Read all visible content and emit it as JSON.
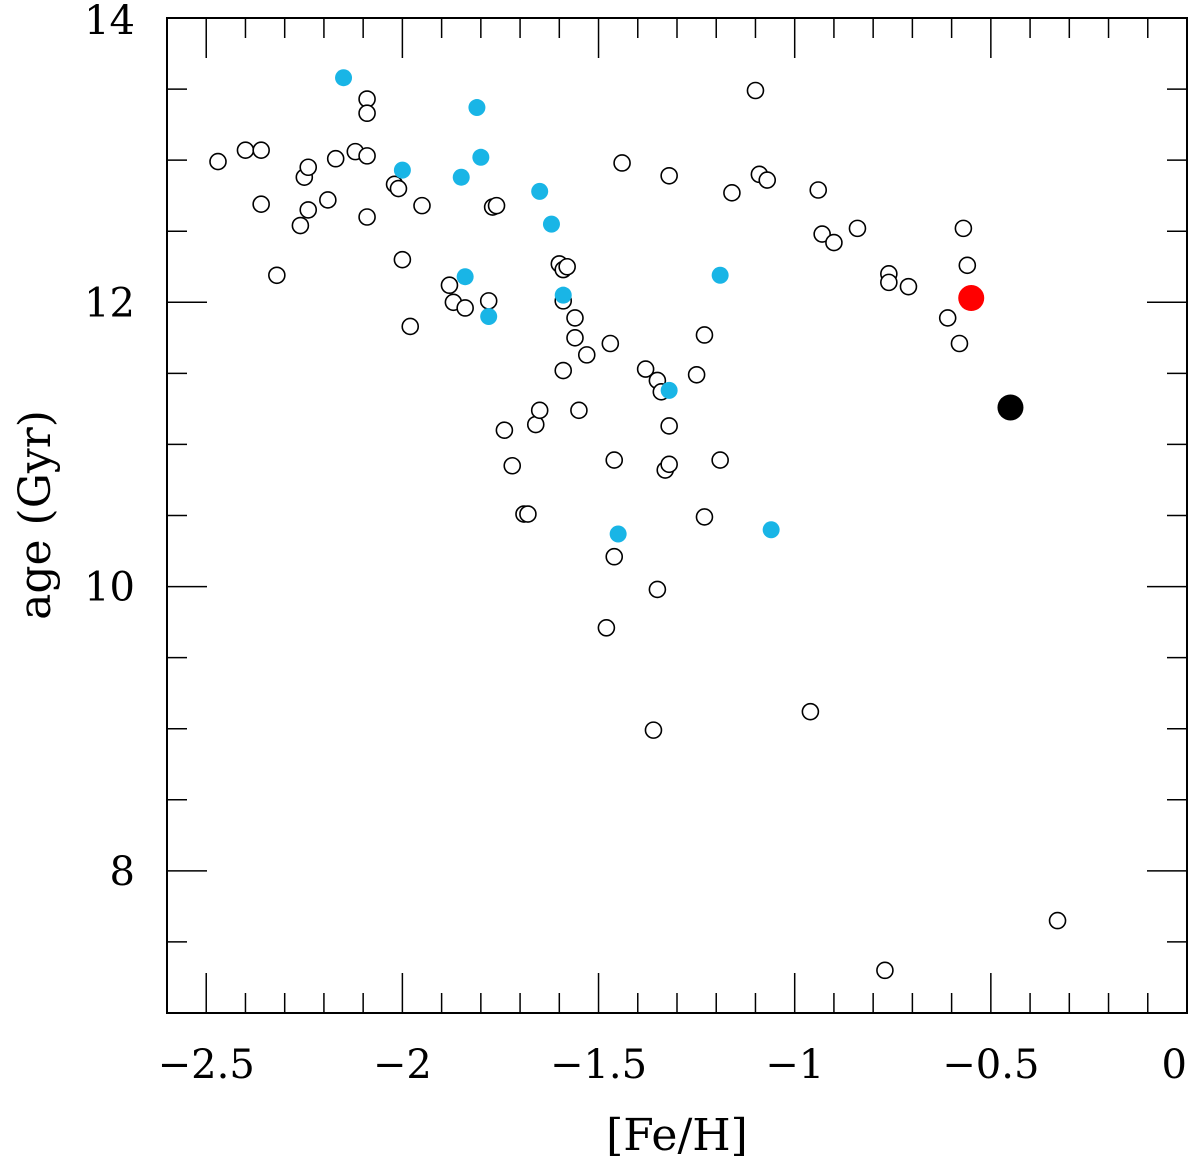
{
  "chart_data": {
    "type": "scatter",
    "xlabel": "[Fe/H]",
    "ylabel": "age (Gyr)",
    "xlim": [
      -2.6,
      0
    ],
    "ylim": [
      7.0,
      14.0
    ],
    "x_ticks": [
      -2.5,
      -2,
      -1.5,
      -1,
      -0.5,
      0
    ],
    "x_tick_labels": [
      "−2.5",
      "−2",
      "−1.5",
      "−1",
      "−0.5",
      "0"
    ],
    "x_minor_step": 0.1,
    "y_ticks": [
      8,
      10,
      12,
      14
    ],
    "y_tick_labels": [
      "8",
      "10",
      "12",
      "14"
    ],
    "y_minor_step": 0.5,
    "grid": false,
    "colors": {
      "open_marker_stroke": "#000000",
      "cyan": "#19b5e6",
      "red": "#ff0000",
      "black": "#000000"
    },
    "series": [
      {
        "marker": "open-circle",
        "color": "#000000",
        "points": [
          [
            -2.47,
            12.99
          ],
          [
            -2.4,
            13.07
          ],
          [
            -2.36,
            13.07
          ],
          [
            -2.36,
            12.69
          ],
          [
            -2.32,
            12.19
          ],
          [
            -2.26,
            12.54
          ],
          [
            -2.25,
            12.88
          ],
          [
            -2.24,
            12.65
          ],
          [
            -2.24,
            12.95
          ],
          [
            -2.19,
            12.72
          ],
          [
            -2.17,
            13.01
          ],
          [
            -2.12,
            13.06
          ],
          [
            -2.09,
            13.43
          ],
          [
            -2.09,
            13.33
          ],
          [
            -2.09,
            13.03
          ],
          [
            -2.09,
            12.6
          ],
          [
            -2.02,
            12.83
          ],
          [
            -2.01,
            12.8
          ],
          [
            -2.0,
            12.3
          ],
          [
            -1.98,
            11.83
          ],
          [
            -1.95,
            12.68
          ],
          [
            -1.88,
            12.12
          ],
          [
            -1.87,
            12.0
          ],
          [
            -1.84,
            11.96
          ],
          [
            -1.78,
            12.01
          ],
          [
            -1.77,
            12.67
          ],
          [
            -1.76,
            12.68
          ],
          [
            -1.74,
            11.1
          ],
          [
            -1.72,
            10.85
          ],
          [
            -1.69,
            10.51
          ],
          [
            -1.68,
            10.51
          ],
          [
            -1.66,
            11.14
          ],
          [
            -1.65,
            11.24
          ],
          [
            -1.6,
            12.27
          ],
          [
            -1.59,
            12.23
          ],
          [
            -1.58,
            12.25
          ],
          [
            -1.59,
            12.01
          ],
          [
            -1.59,
            11.52
          ],
          [
            -1.56,
            11.89
          ],
          [
            -1.56,
            11.75
          ],
          [
            -1.55,
            11.24
          ],
          [
            -1.53,
            11.63
          ],
          [
            -1.48,
            9.71
          ],
          [
            -1.47,
            11.71
          ],
          [
            -1.46,
            10.89
          ],
          [
            -1.46,
            10.21
          ],
          [
            -1.44,
            12.98
          ],
          [
            -1.38,
            11.53
          ],
          [
            -1.35,
            11.45
          ],
          [
            -1.34,
            11.37
          ],
          [
            -1.35,
            9.98
          ],
          [
            -1.36,
            8.99
          ],
          [
            -1.33,
            10.82
          ],
          [
            -1.32,
            10.86
          ],
          [
            -1.32,
            11.13
          ],
          [
            -1.32,
            12.89
          ],
          [
            -1.25,
            11.49
          ],
          [
            -1.23,
            11.77
          ],
          [
            -1.23,
            10.49
          ],
          [
            -1.19,
            10.89
          ],
          [
            -1.16,
            12.77
          ],
          [
            -1.1,
            13.49
          ],
          [
            -1.09,
            12.9
          ],
          [
            -1.07,
            12.86
          ],
          [
            -0.96,
            9.12
          ],
          [
            -0.94,
            12.79
          ],
          [
            -0.93,
            12.48
          ],
          [
            -0.9,
            12.42
          ],
          [
            -0.84,
            12.52
          ],
          [
            -0.76,
            12.2
          ],
          [
            -0.76,
            12.14
          ],
          [
            -0.77,
            7.3
          ],
          [
            -0.71,
            12.11
          ],
          [
            -0.61,
            11.89
          ],
          [
            -0.58,
            11.71
          ],
          [
            -0.57,
            12.52
          ],
          [
            -0.56,
            12.26
          ],
          [
            -0.33,
            7.65
          ]
        ]
      },
      {
        "marker": "filled-circle",
        "color": "#19b5e6",
        "points": [
          [
            -2.15,
            13.58
          ],
          [
            -2.0,
            12.93
          ],
          [
            -1.85,
            12.88
          ],
          [
            -1.84,
            12.18
          ],
          [
            -1.81,
            13.37
          ],
          [
            -1.8,
            13.02
          ],
          [
            -1.78,
            11.9
          ],
          [
            -1.65,
            12.78
          ],
          [
            -1.62,
            12.55
          ],
          [
            -1.59,
            12.05
          ],
          [
            -1.45,
            10.37
          ],
          [
            -1.32,
            11.38
          ],
          [
            -1.19,
            12.19
          ],
          [
            -1.06,
            10.4
          ]
        ]
      },
      {
        "marker": "filled-circle-large",
        "color": "#ff0000",
        "points": [
          [
            -0.55,
            12.03
          ]
        ]
      },
      {
        "marker": "filled-circle-large",
        "color": "#000000",
        "points": [
          [
            -0.45,
            11.26
          ]
        ]
      }
    ]
  }
}
